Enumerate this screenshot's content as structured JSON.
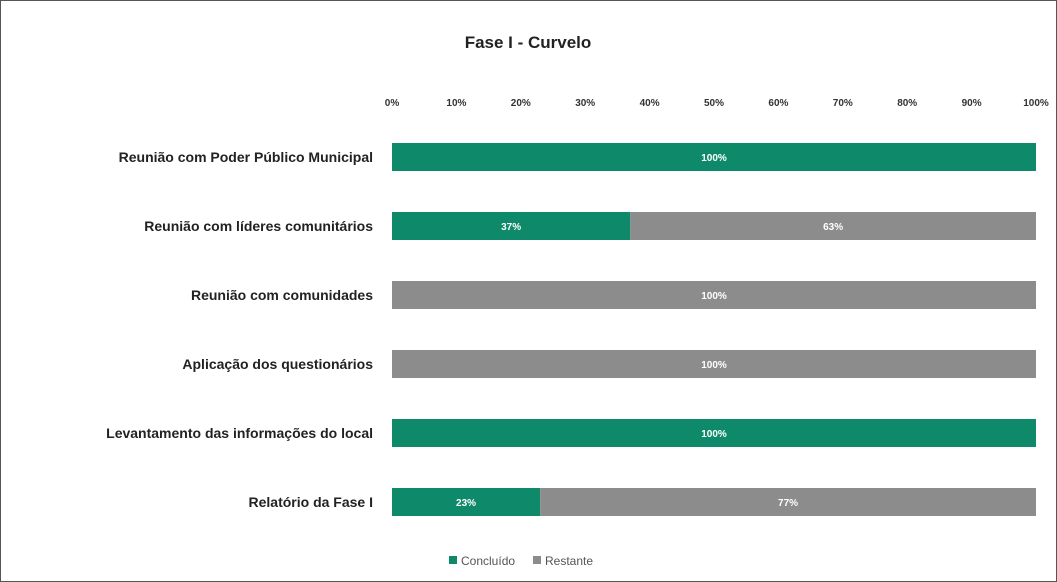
{
  "chart_data": {
    "type": "bar",
    "orientation": "horizontal",
    "stacked": "percent",
    "title": "Fase I - Curvelo",
    "xlim": [
      0,
      100
    ],
    "x_ticks": [
      "0%",
      "10%",
      "20%",
      "30%",
      "40%",
      "50%",
      "60%",
      "70%",
      "80%",
      "90%",
      "100%"
    ],
    "categories": [
      "Reunião com Poder Público Municipal",
      "Reunião com líderes comunitários",
      "Reunião com comunidades",
      "Aplicação dos questionários",
      "Levantamento das informações do local",
      "Relatório da Fase I"
    ],
    "series": [
      {
        "name": "Concluído",
        "color": "#0e8a6a",
        "values": [
          100,
          37,
          0,
          0,
          100,
          23
        ],
        "labels": [
          "100%",
          "37%",
          "",
          "",
          "100%",
          "23%"
        ]
      },
      {
        "name": "Restante",
        "color": "#8c8c8c",
        "values": [
          0,
          63,
          100,
          100,
          0,
          77
        ],
        "labels": [
          "",
          "63%",
          "100%",
          "100%",
          "",
          "77%"
        ]
      }
    ],
    "legend_position": "bottom",
    "grid": false
  }
}
